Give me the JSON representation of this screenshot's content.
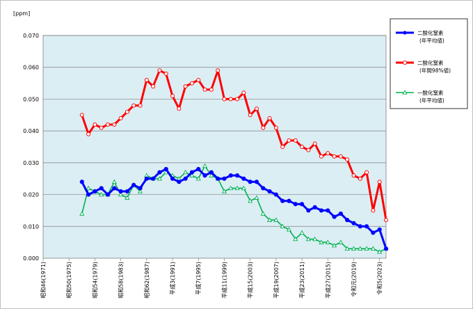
{
  "chart_data": {
    "type": "line",
    "unit_label": "[ppm]",
    "xlim": [
      1971,
      2024
    ],
    "ylim": [
      0,
      0.07
    ],
    "y_ticks": [
      "0.000",
      "0.010",
      "0.020",
      "0.030",
      "0.040",
      "0.050",
      "0.060",
      "0.070"
    ],
    "x_ticks": [
      {
        "year": 1971,
        "label": "昭和46(1971)"
      },
      {
        "year": 1975,
        "label": "昭和50(1975)"
      },
      {
        "year": 1979,
        "label": "昭和54(1979)"
      },
      {
        "year": 1983,
        "label": "昭和58(1983)"
      },
      {
        "year": 1987,
        "label": "昭和62(1987)"
      },
      {
        "year": 1991,
        "label": "平成3(1991)"
      },
      {
        "year": 1995,
        "label": "平成7(1995)"
      },
      {
        "year": 1999,
        "label": "平成11(1999)"
      },
      {
        "year": 2003,
        "label": "平成15(2003)"
      },
      {
        "year": 2007,
        "label": "平成19(2007)"
      },
      {
        "year": 2011,
        "label": "平成23(2011)"
      },
      {
        "year": 2015,
        "label": "平成27(2015)"
      },
      {
        "year": 2019,
        "label": "令和元(2019)"
      },
      {
        "year": 2023,
        "label": "令和5(2023)"
      }
    ],
    "grid": "horizontal",
    "legend_position": "right",
    "x": [
      1977,
      1978,
      1979,
      1980,
      1981,
      1982,
      1983,
      1984,
      1985,
      1986,
      1987,
      1988,
      1989,
      1990,
      1991,
      1992,
      1993,
      1994,
      1995,
      1996,
      1997,
      1998,
      1999,
      2000,
      2001,
      2002,
      2003,
      2004,
      2005,
      2006,
      2007,
      2008,
      2009,
      2010,
      2011,
      2012,
      2013,
      2014,
      2015,
      2016,
      2017,
      2018,
      2019,
      2020,
      2021,
      2022,
      2023,
      2024
    ],
    "series": [
      {
        "name": "二酸化窒素",
        "name_sub": "(年平均値)",
        "color": "#0000ff",
        "marker": "circle-filled",
        "values": [
          0.024,
          0.02,
          0.021,
          0.022,
          0.02,
          0.022,
          0.021,
          0.021,
          0.023,
          0.022,
          0.025,
          0.025,
          0.027,
          0.028,
          0.025,
          0.024,
          0.025,
          0.027,
          0.028,
          0.026,
          0.027,
          0.025,
          0.025,
          0.026,
          0.026,
          0.025,
          0.024,
          0.024,
          0.022,
          0.021,
          0.02,
          0.018,
          0.018,
          0.017,
          0.017,
          0.015,
          0.016,
          0.015,
          0.015,
          0.013,
          0.014,
          0.012,
          0.011,
          0.01,
          0.01,
          0.008,
          0.009,
          0.003
        ]
      },
      {
        "name": "二酸化窒素",
        "name_sub": "(年間98%値)",
        "color": "#ff0000",
        "marker": "circle-open",
        "values": [
          0.045,
          0.039,
          0.042,
          0.041,
          0.042,
          0.042,
          0.044,
          0.046,
          0.048,
          0.048,
          0.056,
          0.054,
          0.059,
          0.058,
          0.051,
          0.047,
          0.054,
          0.055,
          0.056,
          0.053,
          0.053,
          0.059,
          0.05,
          0.05,
          0.05,
          0.052,
          0.045,
          0.047,
          0.041,
          0.044,
          0.041,
          0.035,
          0.037,
          0.037,
          0.035,
          0.034,
          0.036,
          0.032,
          0.033,
          0.032,
          0.032,
          0.031,
          0.026,
          0.025,
          0.027,
          0.015,
          0.024,
          0.012
        ]
      },
      {
        "name": "一酸化窒素",
        "name_sub": "(年平均値)",
        "color": "#00b050",
        "marker": "triangle-open",
        "values": [
          0.014,
          0.022,
          0.021,
          0.02,
          0.02,
          0.024,
          0.02,
          0.019,
          0.023,
          0.021,
          0.026,
          0.025,
          0.025,
          0.027,
          0.026,
          0.025,
          0.027,
          0.026,
          0.025,
          0.029,
          0.026,
          0.025,
          0.021,
          0.022,
          0.022,
          0.022,
          0.018,
          0.019,
          0.014,
          0.012,
          0.012,
          0.01,
          0.009,
          0.006,
          0.008,
          0.006,
          0.006,
          0.005,
          0.005,
          0.004,
          0.005,
          0.003,
          0.003,
          0.003,
          0.003,
          0.003,
          0.002,
          0.003
        ]
      }
    ]
  }
}
